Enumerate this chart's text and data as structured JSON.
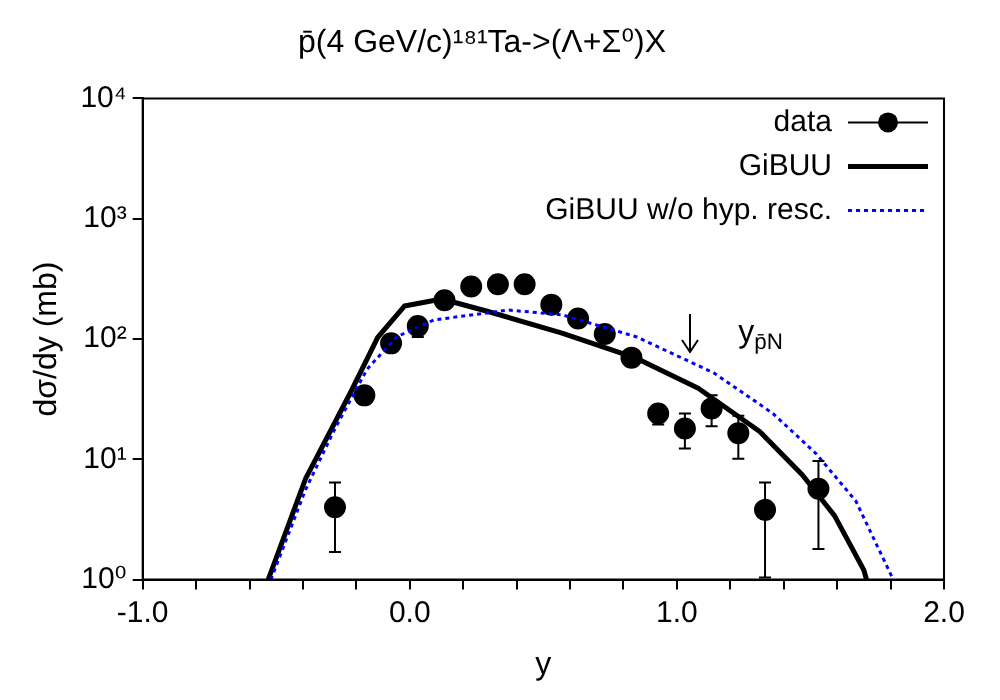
{
  "chart_data": {
    "type": "scatter",
    "title": "p̄(4 GeV/c)¹⁸¹Ta->(Λ+Σ⁰)X",
    "xlabel": "y",
    "ylabel": "dσ/dy (mb)",
    "log": "y",
    "xlim": [
      -1.0,
      2.0
    ],
    "ylim": [
      1,
      10000
    ],
    "xticks": [
      {
        "value": -1.0,
        "label": "-1.0"
      },
      {
        "value": -0.8,
        "label": null
      },
      {
        "value": -0.6,
        "label": null
      },
      {
        "value": -0.4,
        "label": null
      },
      {
        "value": -0.2,
        "label": null
      },
      {
        "value": 0,
        "label": "0.0"
      },
      {
        "value": 0.2,
        "label": null
      },
      {
        "value": 0.4,
        "label": null
      },
      {
        "value": 0.6,
        "label": null
      },
      {
        "value": 0.8,
        "label": null
      },
      {
        "value": 1.0,
        "label": "1.0"
      },
      {
        "value": 1.2,
        "label": null
      },
      {
        "value": 1.4,
        "label": null
      },
      {
        "value": 1.6,
        "label": null
      },
      {
        "value": 1.8,
        "label": null
      },
      {
        "value": 2.0,
        "label": "2.0"
      }
    ],
    "yticks": [
      {
        "value": 1,
        "label": "10⁰"
      },
      {
        "value": 10,
        "label": "10¹"
      },
      {
        "value": 100,
        "label": "10²"
      },
      {
        "value": 1000,
        "label": "10³"
      },
      {
        "value": 10000,
        "label": "10⁴"
      }
    ],
    "grid": false,
    "legend": "top right",
    "annotations": [
      {
        "text": "y$_{p̄N}$",
        "x": 1.05,
        "y": 76
      }
    ],
    "series": [
      {
        "name": "data",
        "type": "scatter",
        "marker": "circle",
        "color": "#000000",
        "x": [
          -0.28,
          -0.17,
          -0.07,
          0.03,
          0.13,
          0.23,
          0.33,
          0.43,
          0.53,
          0.63,
          0.73,
          0.83,
          0.93,
          1.03,
          1.13,
          1.23,
          1.33,
          1.53
        ],
        "values": [
          4.0,
          34,
          92,
          128,
          210,
          273,
          285,
          285,
          193,
          148,
          110,
          70,
          24,
          18,
          26.5,
          16.5,
          3.8,
          5.7
        ],
        "errors": [
          [
            1.7,
            6.4
          ],
          [
            29,
            39
          ],
          null,
          [
            104,
            147
          ],
          null,
          null,
          null,
          null,
          null,
          null,
          null,
          null,
          [
            19.5,
            28
          ],
          [
            12.3,
            24
          ],
          [
            18.8,
            34
          ],
          [
            10.1,
            23
          ],
          [
            1.04,
            6.4
          ],
          [
            1.8,
            9.7
          ]
        ]
      },
      {
        "name": "GiBUU",
        "type": "line",
        "marker": "none",
        "line_style": "solid",
        "color": "#000000",
        "x": [
          -0.53,
          -0.39,
          -0.22,
          -0.12,
          -0.02,
          0.12,
          0.29,
          0.57,
          0.85,
          1.08,
          1.31,
          1.47,
          1.59,
          1.7,
          1.71
        ],
        "values": [
          1,
          6.9,
          36.6,
          103,
          188,
          215,
          170,
          112,
          69,
          39,
          17,
          7.4,
          3.4,
          1.2,
          1
        ]
      },
      {
        "name": "GiBUU w/o hyp. resc.",
        "type": "line",
        "marker": "none",
        "line_style": "dotted",
        "color": "#0000ff",
        "x": [
          -0.52,
          -0.39,
          -0.28,
          -0.16,
          -0.05,
          0.09,
          0.37,
          0.57,
          0.85,
          1.14,
          1.36,
          1.52,
          1.67,
          1.81
        ],
        "values": [
          1,
          5.6,
          18,
          56,
          104,
          144,
          174,
          159,
          104,
          52,
          24,
          11.2,
          4.5,
          1
        ]
      }
    ]
  }
}
